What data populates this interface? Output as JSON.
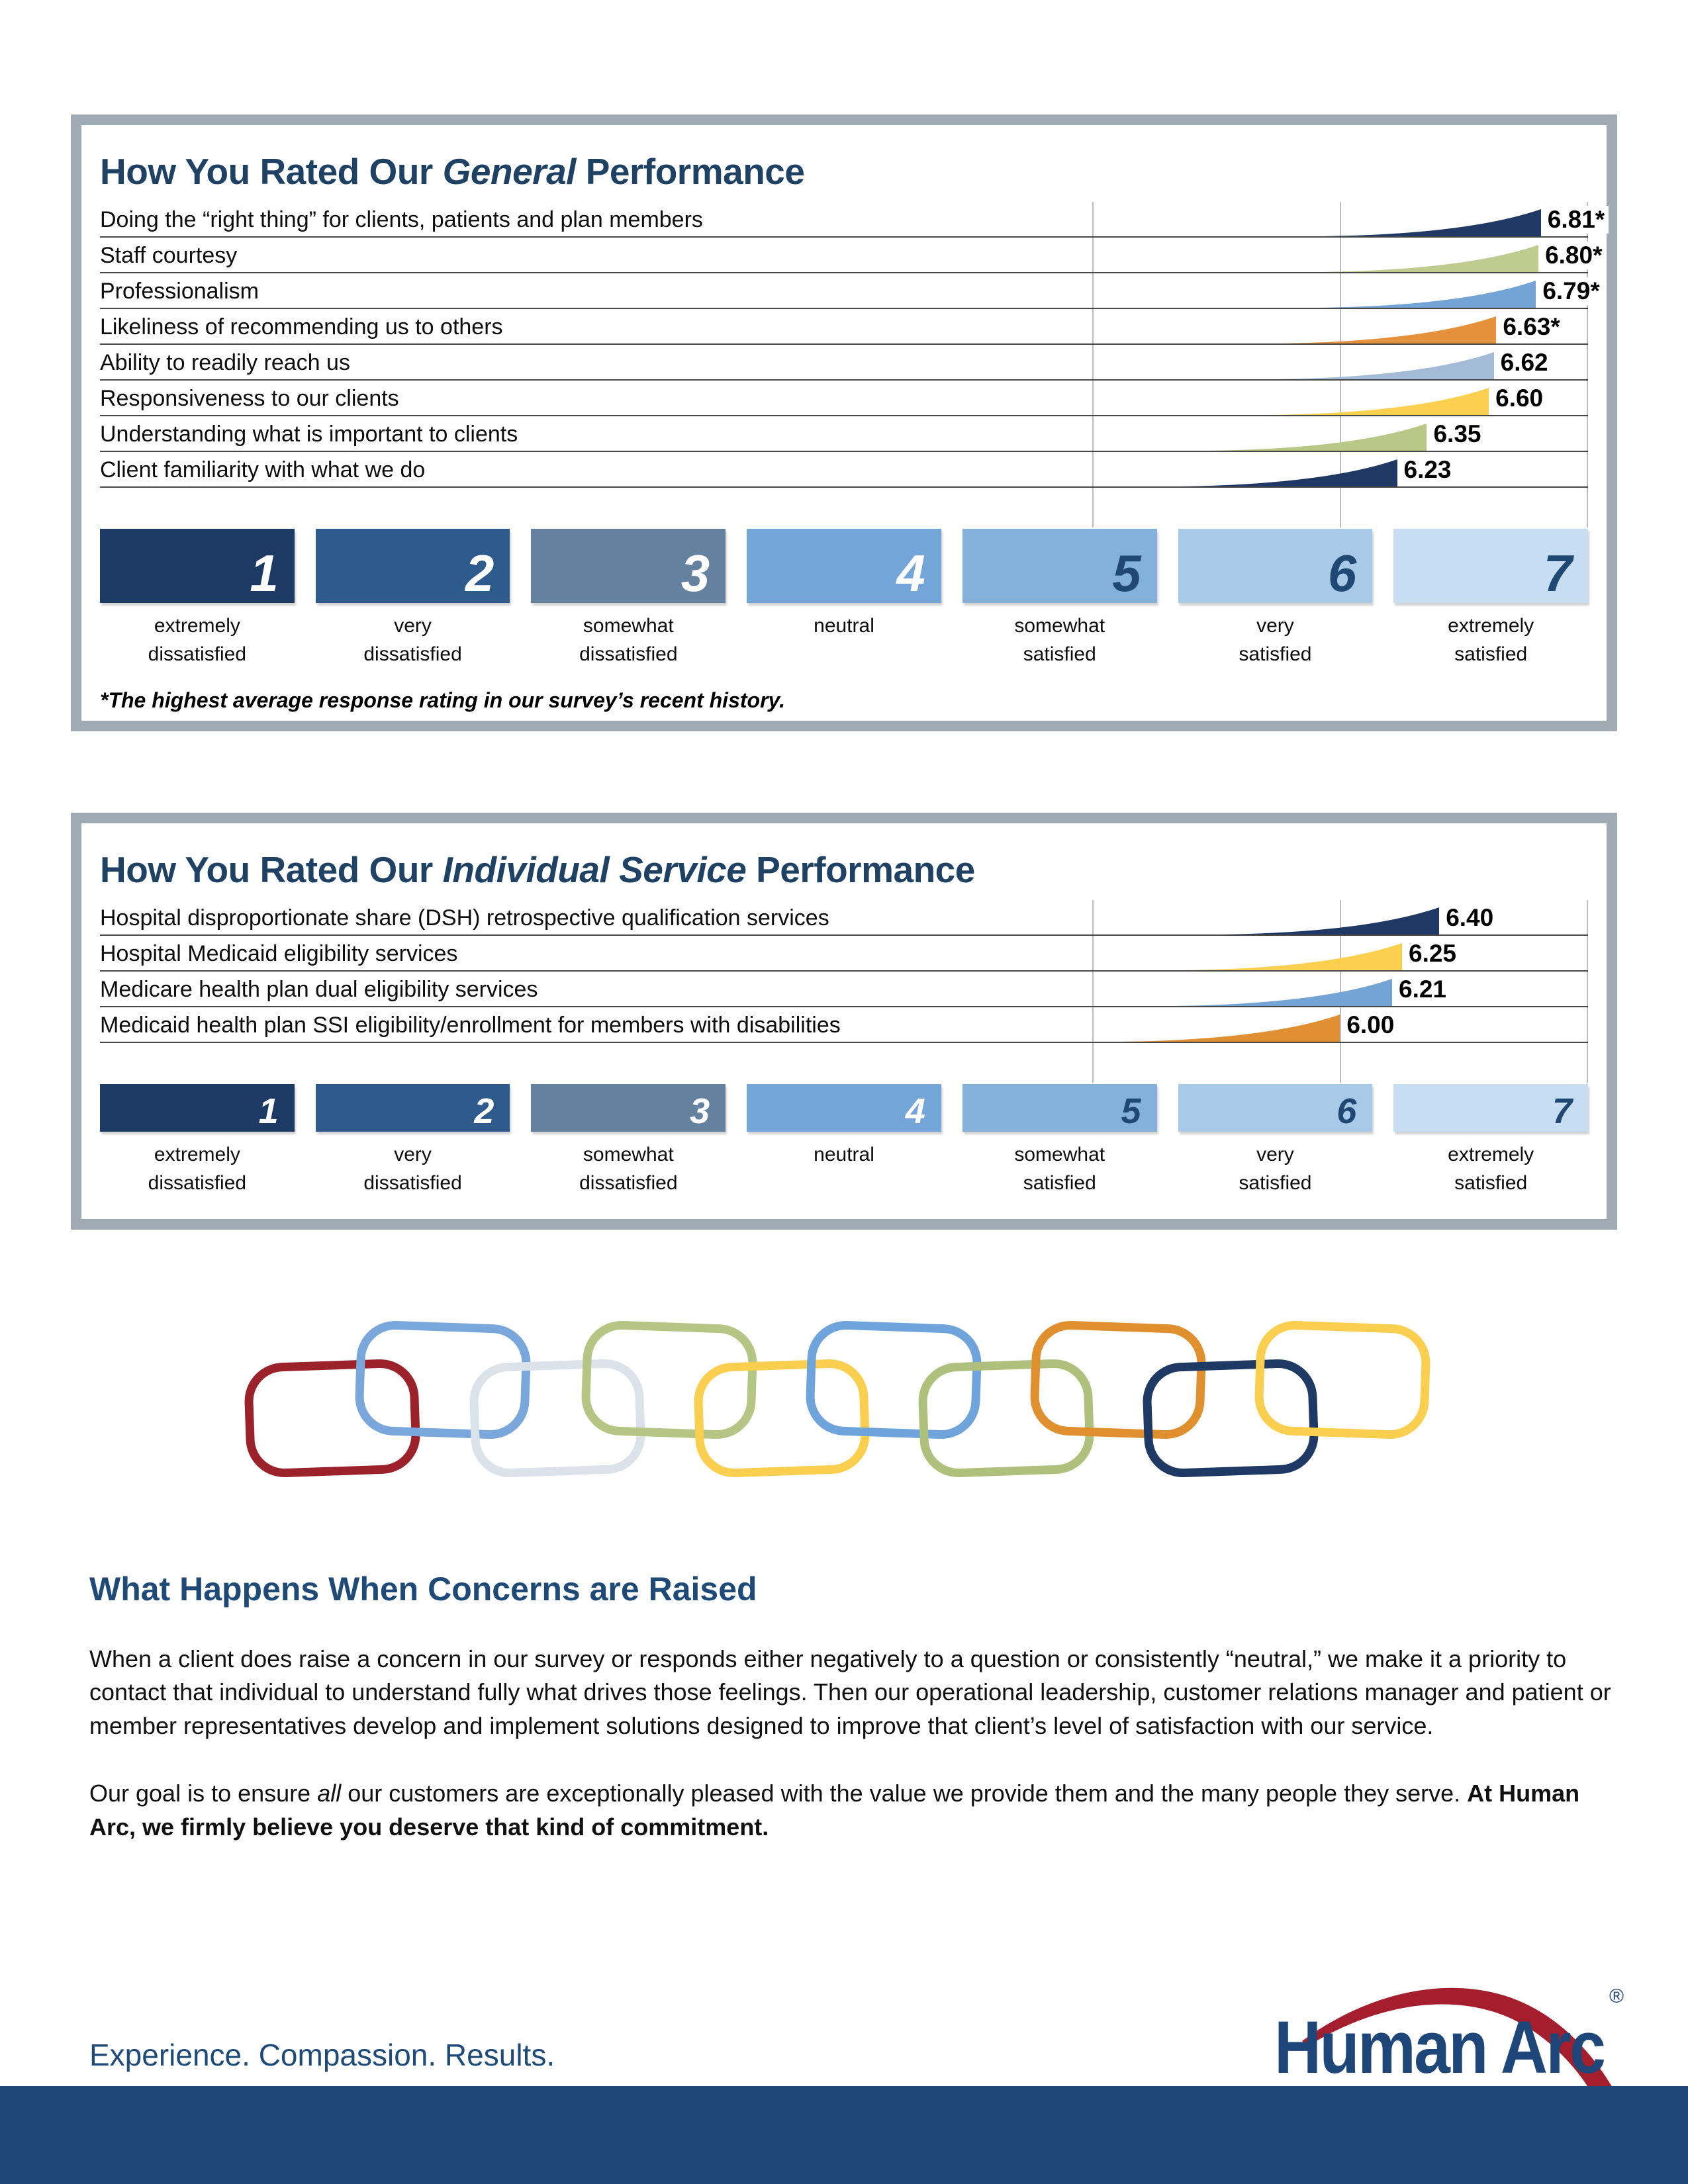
{
  "page": {
    "background": "#FFFFFF",
    "accent_navy": "#1E4164",
    "panel_border_color": "#A0AAB2",
    "footer_bar_color": "#1F4878"
  },
  "scale": {
    "items": [
      {
        "num": "1",
        "line1": "extremely",
        "line2": "dissatisfied",
        "box": "#1C3A64",
        "numColor": "#FFFFFF"
      },
      {
        "num": "2",
        "line1": "very",
        "line2": "dissatisfied",
        "box": "#2F5A8C",
        "numColor": "#FFFFFF"
      },
      {
        "num": "3",
        "line1": "somewhat",
        "line2": "dissatisfied",
        "box": "#64819F",
        "numColor": "#FFFFFF"
      },
      {
        "num": "4",
        "line1": "neutral",
        "line2": "",
        "box": "#74A5D8",
        "numColor": "#FFFFFF"
      },
      {
        "num": "5",
        "line1": "somewhat",
        "line2": "satisfied",
        "box": "#84B1DC",
        "numColor": "#1F4873"
      },
      {
        "num": "6",
        "line1": "very",
        "line2": "satisfied",
        "box": "#A9C9E8",
        "numColor": "#1F4873"
      },
      {
        "num": "7",
        "line1": "extremely",
        "line2": "satisfied",
        "box": "#C7DDF1",
        "numColor": "#1F4873"
      }
    ]
  },
  "panel_general": {
    "title_prefix": "How You Rated Our ",
    "title_italic": "General",
    "title_suffix": " Performance",
    "rows": [
      {
        "label": "Doing the “right thing” for clients, patients and plan members",
        "value": "6.81*",
        "score": 6.81,
        "color": "#1F3864"
      },
      {
        "label": "Staff courtesy",
        "value": "6.80*",
        "score": 6.8,
        "color": "#C0CC8F"
      },
      {
        "label": "Professionalism",
        "value": "6.79*",
        "score": 6.79,
        "color": "#74A3D6"
      },
      {
        "label": "Likeliness of recommending us to others",
        "value": "6.63*",
        "score": 6.63,
        "color": "#E5913C"
      },
      {
        "label": "Ability to readily reach us",
        "value": "6.62",
        "score": 6.62,
        "color": "#A3BBD6"
      },
      {
        "label": "Responsiveness to our clients",
        "value": "6.60",
        "score": 6.6,
        "color": "#FBD04F"
      },
      {
        "label": "Understanding what is important to clients",
        "value": "6.35",
        "score": 6.35,
        "color": "#B9C787"
      },
      {
        "label": "Client familiarity with what we do",
        "value": "6.23",
        "score": 6.23,
        "color": "#1F3864"
      }
    ],
    "footnote": "*The highest average response rating in our survey’s recent history."
  },
  "panel_individual": {
    "title_prefix": "How You Rated Our ",
    "title_italic": "Individual Service",
    "title_suffix": " Performance",
    "rows": [
      {
        "label": "Hospital disproportionate share (DSH) retrospective qualification services",
        "value": "6.40",
        "score": 6.4,
        "color": "#1F3864"
      },
      {
        "label": "Hospital Medicaid eligibility services",
        "value": "6.25",
        "score": 6.25,
        "color": "#FBD04F"
      },
      {
        "label": "Medicare health plan dual eligibility services",
        "value": "6.21",
        "score": 6.21,
        "color": "#74A3D6"
      },
      {
        "label": "Medicaid health plan SSI eligibility/enrollment for members with disabilities",
        "value": "6.00",
        "score": 6.0,
        "color": "#E08F33"
      }
    ]
  },
  "chain": {
    "colors": [
      "#9B222B",
      "#7AA7DB",
      "#DBE2EA",
      "#B7C584",
      "#FACE4F",
      "#6FA3DB",
      "#AEC07C",
      "#E08F2F",
      "#1E3A64",
      "#FACE4F"
    ]
  },
  "concerns": {
    "heading": "What Happens When Concerns are Raised",
    "p1": "When a client does raise a concern in our survey or responds either negatively to a question or consistently “neutral,” we make it a priority to contact that individual to understand fully what drives those feelings. Then our operational leadership, customer relations manager and patient or member representatives develop and implement solutions designed to improve that client’s level of satisfaction with our service.",
    "p2_prefix": "Our goal is to ensure ",
    "p2_italic": "all",
    "p2_middle": " our customers are exceptionally pleased with the value we provide them and the many people they serve. ",
    "p2_bold": "At Human Arc, we firmly believe you deserve that kind of commitment."
  },
  "footer": {
    "tagline": "Experience. Compassion. Results.",
    "logo_text": "Human Arc",
    "logo_reg": "®",
    "logo_navy": "#1E4679",
    "logo_red": "#A41E2D"
  },
  "chart_data": [
    {
      "type": "bar",
      "title": "How You Rated Our General Performance",
      "categories": [
        "Doing the “right thing” for clients, patients and plan members",
        "Staff courtesy",
        "Professionalism",
        "Likeliness of recommending us to others",
        "Ability to readily reach us",
        "Responsiveness to our clients",
        "Understanding what is important to clients",
        "Client familiarity with what we do"
      ],
      "values": [
        6.81,
        6.8,
        6.79,
        6.63,
        6.62,
        6.6,
        6.35,
        6.23
      ],
      "value_labels": [
        "6.81*",
        "6.80*",
        "6.79*",
        "6.63*",
        "6.62",
        "6.60",
        "6.35",
        "6.23"
      ],
      "xlabel": "satisfaction rating (1 = extremely dissatisfied, 7 = extremely satisfied)",
      "ylabel": "",
      "xlim": [
        1,
        7
      ],
      "grid": true,
      "footnote": "*The highest average response rating in our survey’s recent history."
    },
    {
      "type": "bar",
      "title": "How You Rated Our Individual Service Performance",
      "categories": [
        "Hospital disproportionate share (DSH) retrospective qualification services",
        "Hospital Medicaid eligibility services",
        "Medicare health plan dual eligibility services",
        "Medicaid health plan SSI eligibility/enrollment for members with disabilities"
      ],
      "values": [
        6.4,
        6.25,
        6.21,
        6.0
      ],
      "value_labels": [
        "6.40",
        "6.25",
        "6.21",
        "6.00"
      ],
      "xlabel": "satisfaction rating (1 = extremely dissatisfied, 7 = extremely satisfied)",
      "ylabel": "",
      "xlim": [
        1,
        7
      ],
      "grid": true
    }
  ]
}
